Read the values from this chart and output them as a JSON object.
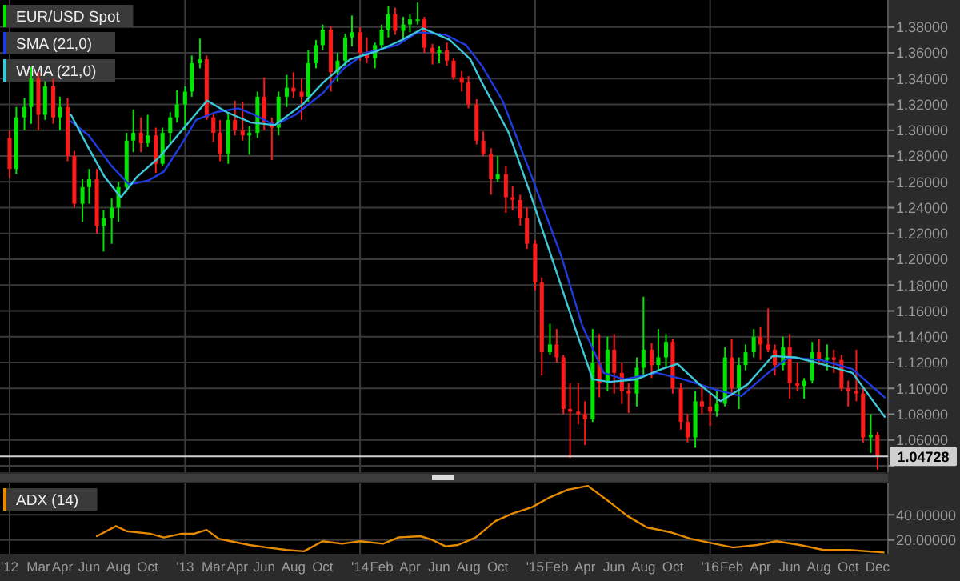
{
  "chart_data": [
    {
      "type": "candlestick",
      "xlim": [
        "2011-12-12",
        "2017-01-06"
      ],
      "ylim": [
        1.035,
        1.401
      ],
      "xticks": [
        {
          "value": "2012-01-01",
          "label": null
        },
        {
          "value": "2013-01-01",
          "label": null
        },
        {
          "value": "2014-01-01",
          "label": null
        },
        {
          "value": "2015-01-01",
          "label": null
        },
        {
          "value": "2016-01-01",
          "label": null
        }
      ],
      "yticks": [
        {
          "value": 1.04,
          "label": null
        },
        {
          "value": 1.06,
          "label": "1.06000"
        },
        {
          "value": 1.08,
          "label": "1.08000"
        },
        {
          "value": 1.1,
          "label": "1.10000"
        },
        {
          "value": 1.12,
          "label": "1.12000"
        },
        {
          "value": 1.14,
          "label": "1.14000"
        },
        {
          "value": 1.16,
          "label": "1.16000"
        },
        {
          "value": 1.18,
          "label": "1.18000"
        },
        {
          "value": 1.2,
          "label": "1.20000"
        },
        {
          "value": 1.22,
          "label": "1.22000"
        },
        {
          "value": 1.24,
          "label": "1.24000"
        },
        {
          "value": 1.26,
          "label": "1.26000"
        },
        {
          "value": 1.28,
          "label": "1.28000"
        },
        {
          "value": 1.3,
          "label": "1.30000"
        },
        {
          "value": 1.32,
          "label": "1.32000"
        },
        {
          "value": 1.34,
          "label": "1.34000"
        },
        {
          "value": 1.36,
          "label": "1.36000"
        },
        {
          "value": 1.38,
          "label": "1.38000"
        }
      ],
      "tick_labels": "y",
      "grid": true,
      "legend": "top left",
      "ref_lines": [
        {
          "axis": "y",
          "value": 1.04728,
          "label": "1.04728",
          "color": "#d0d0d0"
        }
      ],
      "series": [
        {
          "name": "EUR/USD Spot",
          "type": "candlestick",
          "color": "#00e600",
          "colors": [
            "#ff1a1a",
            "#00e600",
            "#00e600",
            "#00e600",
            "#ff1a1a",
            "#00e600",
            "#ff1a1a",
            "#00e600",
            "#ff1a1a",
            "#ff1a1a",
            "#00e600",
            "#00e600",
            "#ff1a1a",
            "#00e600",
            "#00e600",
            "#00e600",
            "#00e600",
            "#00e600",
            "#ff1a1a",
            "#00e600",
            "#ff1a1a",
            "#00e600",
            "#00e600",
            "#00e600",
            "#00e600",
            "#00e600",
            "#00e600",
            "#ff1a1a",
            "#ff1a1a",
            "#ff1a1a",
            "#00e600",
            "#ff1a1a",
            "#ff1a1a",
            "#00e600",
            "#00e600",
            "#ff1a1a",
            "#ff1a1a",
            "#00e600",
            "#00e600",
            "#ff1a1a",
            "#ff1a1a",
            "#00e600",
            "#00e600",
            "#00e600",
            "#ff1a1a",
            "#00e600",
            "#00e600",
            "#00e600",
            "#ff1a1a",
            "#ff1a1a",
            "#00e600",
            "#00e600",
            "#00e600",
            "#ff1a1a",
            "#00e600",
            "#00e600",
            "#00e600",
            "#ff1a1a",
            "#ff1a1a",
            "#00e600",
            "#ff1a1a",
            "#ff1a1a",
            "#ff1a1a",
            "#ff1a1a",
            "#ff1a1a",
            "#ff1a1a",
            "#ff1a1a",
            "#00e600",
            "#ff1a1a",
            "#ff1a1a",
            "#ff1a1a",
            "#ff1a1a",
            "#ff1a1a",
            "#ff1a1a",
            "#00e600",
            "#ff1a1a",
            "#ff1a1a",
            "#ff1a1a",
            "#ff1a1a",
            "#ff1a1a",
            "#00e600",
            "#ff1a1a",
            "#00e600",
            "#ff1a1a",
            "#ff1a1a",
            "#ff1a1a",
            "#00e600",
            "#00e600",
            "#ff1a1a",
            "#00e600",
            "#00e600",
            "#ff1a1a",
            "#ff1a1a",
            "#ff1a1a",
            "#00e600",
            "#ff1a1a",
            "#ff1a1a",
            "#00e600",
            "#00e600",
            "#ff1a1a",
            "#00e600",
            "#00e600",
            "#00e600",
            "#ff1a1a",
            "#ff1a1a",
            "#ff1a1a",
            "#00e600",
            "#ff1a1a",
            "#ff1a1a",
            "#00e600",
            "#00e600",
            "#ff1a1a",
            "#00e600",
            "#ff1a1a",
            "#ff1a1a",
            "#ff1a1a",
            "#ff1a1a",
            "#ff1a1a",
            "#00e600",
            "#ff1a1a"
          ],
          "x": [
            "2012-01-01",
            "2012-01-15",
            "2012-02-01",
            "2012-02-15",
            "2012-03-01",
            "2012-03-15",
            "2012-04-01",
            "2012-04-15",
            "2012-05-01",
            "2012-05-15",
            "2012-06-01",
            "2012-06-15",
            "2012-07-01",
            "2012-07-15",
            "2012-08-01",
            "2012-08-15",
            "2012-09-01",
            "2012-09-15",
            "2012-10-01",
            "2012-10-15",
            "2012-11-01",
            "2012-11-15",
            "2012-12-01",
            "2012-12-15",
            "2013-01-01",
            "2013-01-15",
            "2013-02-01",
            "2013-02-15",
            "2013-03-01",
            "2013-03-15",
            "2013-04-01",
            "2013-04-15",
            "2013-05-01",
            "2013-05-15",
            "2013-06-01",
            "2013-06-15",
            "2013-07-01",
            "2013-07-15",
            "2013-08-01",
            "2013-08-15",
            "2013-09-01",
            "2013-09-15",
            "2013-10-01",
            "2013-10-15",
            "2013-11-01",
            "2013-11-15",
            "2013-12-01",
            "2013-12-15",
            "2014-01-01",
            "2014-01-15",
            "2014-02-01",
            "2014-02-15",
            "2014-03-01",
            "2014-03-15",
            "2014-04-01",
            "2014-04-15",
            "2014-05-01",
            "2014-05-15",
            "2014-06-01",
            "2014-06-15",
            "2014-07-01",
            "2014-07-15",
            "2014-08-01",
            "2014-08-15",
            "2014-09-01",
            "2014-09-15",
            "2014-10-01",
            "2014-10-15",
            "2014-11-01",
            "2014-11-15",
            "2014-12-01",
            "2014-12-15",
            "2015-01-01",
            "2015-01-15",
            "2015-02-01",
            "2015-02-15",
            "2015-03-01",
            "2015-03-15",
            "2015-04-01",
            "2015-04-15",
            "2015-05-01",
            "2015-05-15",
            "2015-06-01",
            "2015-06-15",
            "2015-07-01",
            "2015-07-15",
            "2015-08-01",
            "2015-08-15",
            "2015-09-01",
            "2015-09-15",
            "2015-10-01",
            "2015-10-15",
            "2015-11-01",
            "2015-11-15",
            "2015-12-01",
            "2015-12-15",
            "2016-01-01",
            "2016-01-15",
            "2016-02-01",
            "2016-02-15",
            "2016-03-01",
            "2016-03-15",
            "2016-04-01",
            "2016-04-15",
            "2016-05-01",
            "2016-05-15",
            "2016-06-01",
            "2016-06-15",
            "2016-07-01",
            "2016-07-15",
            "2016-08-01",
            "2016-08-15",
            "2016-09-01",
            "2016-09-15",
            "2016-10-01",
            "2016-10-15",
            "2016-11-01",
            "2016-11-15",
            "2016-12-01",
            "2016-12-15"
          ],
          "ohlc": [
            [
              1.294,
              1.3,
              1.263,
              1.27
            ],
            [
              1.27,
              1.318,
              1.266,
              1.31
            ],
            [
              1.31,
              1.325,
              1.3,
              1.318
            ],
            [
              1.318,
              1.349,
              1.305,
              1.34
            ],
            [
              1.34,
              1.345,
              1.3,
              1.312
            ],
            [
              1.312,
              1.338,
              1.308,
              1.334
            ],
            [
              1.334,
              1.34,
              1.305,
              1.31
            ],
            [
              1.31,
              1.326,
              1.3,
              1.318
            ],
            [
              1.318,
              1.325,
              1.276,
              1.28
            ],
            [
              1.28,
              1.284,
              1.24,
              1.243
            ],
            [
              1.243,
              1.262,
              1.229,
              1.256
            ],
            [
              1.256,
              1.27,
              1.243,
              1.262
            ],
            [
              1.262,
              1.27,
              1.22,
              1.226
            ],
            [
              1.226,
              1.238,
              1.206,
              1.232
            ],
            [
              1.232,
              1.247,
              1.212,
              1.24
            ],
            [
              1.24,
              1.26,
              1.229,
              1.256
            ],
            [
              1.256,
              1.298,
              1.252,
              1.292
            ],
            [
              1.292,
              1.316,
              1.283,
              1.298
            ],
            [
              1.298,
              1.31,
              1.283,
              1.29
            ],
            [
              1.29,
              1.312,
              1.287,
              1.296
            ],
            [
              1.296,
              1.302,
              1.267,
              1.274
            ],
            [
              1.274,
              1.302,
              1.272,
              1.298
            ],
            [
              1.298,
              1.314,
              1.29,
              1.31
            ],
            [
              1.31,
              1.331,
              1.306,
              1.32
            ],
            [
              1.32,
              1.334,
              1.3,
              1.33
            ],
            [
              1.33,
              1.358,
              1.326,
              1.352
            ],
            [
              1.352,
              1.371,
              1.348,
              1.355
            ],
            [
              1.355,
              1.358,
              1.308,
              1.31
            ],
            [
              1.31,
              1.314,
              1.291,
              1.298
            ],
            [
              1.298,
              1.308,
              1.276,
              1.282
            ],
            [
              1.282,
              1.314,
              1.274,
              1.308
            ],
            [
              1.308,
              1.323,
              1.296,
              1.3
            ],
            [
              1.3,
              1.322,
              1.292,
              1.296
            ],
            [
              1.296,
              1.303,
              1.281,
              1.298
            ],
            [
              1.298,
              1.33,
              1.294,
              1.326
            ],
            [
              1.326,
              1.341,
              1.3,
              1.306
            ],
            [
              1.306,
              1.31,
              1.277,
              1.302
            ],
            [
              1.302,
              1.33,
              1.296,
              1.326
            ],
            [
              1.326,
              1.343,
              1.318,
              1.333
            ],
            [
              1.333,
              1.345,
              1.325,
              1.33
            ],
            [
              1.33,
              1.34,
              1.308,
              1.326
            ],
            [
              1.326,
              1.362,
              1.322,
              1.352
            ],
            [
              1.352,
              1.37,
              1.348,
              1.366
            ],
            [
              1.366,
              1.382,
              1.362,
              1.378
            ],
            [
              1.378,
              1.381,
              1.33,
              1.345
            ],
            [
              1.345,
              1.36,
              1.338,
              1.354
            ],
            [
              1.354,
              1.375,
              1.35,
              1.372
            ],
            [
              1.372,
              1.389,
              1.365,
              1.376
            ],
            [
              1.376,
              1.38,
              1.354,
              1.36
            ],
            [
              1.36,
              1.372,
              1.352,
              1.356
            ],
            [
              1.356,
              1.368,
              1.348,
              1.366
            ],
            [
              1.366,
              1.382,
              1.362,
              1.378
            ],
            [
              1.378,
              1.396,
              1.372,
              1.39
            ],
            [
              1.39,
              1.395,
              1.374,
              1.377
            ],
            [
              1.377,
              1.388,
              1.37,
              1.382
            ],
            [
              1.382,
              1.39,
              1.376,
              1.386
            ],
            [
              1.386,
              1.399,
              1.382,
              1.386
            ],
            [
              1.386,
              1.388,
              1.36,
              1.364
            ],
            [
              1.364,
              1.367,
              1.351,
              1.36
            ],
            [
              1.36,
              1.365,
              1.352,
              1.362
            ],
            [
              1.362,
              1.368,
              1.35,
              1.354
            ],
            [
              1.354,
              1.356,
              1.339,
              1.341
            ],
            [
              1.341,
              1.346,
              1.33,
              1.337
            ],
            [
              1.337,
              1.342,
              1.317,
              1.32
            ],
            [
              1.32,
              1.324,
              1.289,
              1.292
            ],
            [
              1.292,
              1.299,
              1.28,
              1.282
            ],
            [
              1.282,
              1.286,
              1.25,
              1.262
            ],
            [
              1.262,
              1.28,
              1.26,
              1.266
            ],
            [
              1.266,
              1.272,
              1.236,
              1.248
            ],
            [
              1.248,
              1.257,
              1.238,
              1.246
            ],
            [
              1.246,
              1.25,
              1.226,
              1.232
            ],
            [
              1.232,
              1.24,
              1.208,
              1.212
            ],
            [
              1.212,
              1.215,
              1.176,
              1.182
            ],
            [
              1.182,
              1.186,
              1.11,
              1.128
            ],
            [
              1.128,
              1.15,
              1.126,
              1.134
            ],
            [
              1.134,
              1.146,
              1.12,
              1.124
            ],
            [
              1.124,
              1.126,
              1.08,
              1.084
            ],
            [
              1.084,
              1.104,
              1.046,
              1.082
            ],
            [
              1.082,
              1.104,
              1.072,
              1.08
            ],
            [
              1.08,
              1.09,
              1.056,
              1.076
            ],
            [
              1.076,
              1.146,
              1.074,
              1.12
            ],
            [
              1.12,
              1.142,
              1.093,
              1.104
            ],
            [
              1.104,
              1.14,
              1.098,
              1.13
            ],
            [
              1.13,
              1.142,
              1.096,
              1.112
            ],
            [
              1.112,
              1.12,
              1.088,
              1.098
            ],
            [
              1.098,
              1.104,
              1.081,
              1.096
            ],
            [
              1.096,
              1.124,
              1.086,
              1.116
            ],
            [
              1.116,
              1.171,
              1.11,
              1.13
            ],
            [
              1.13,
              1.135,
              1.108,
              1.118
            ],
            [
              1.118,
              1.146,
              1.114,
              1.124
            ],
            [
              1.124,
              1.142,
              1.116,
              1.136
            ],
            [
              1.136,
              1.138,
              1.096,
              1.1
            ],
            [
              1.1,
              1.104,
              1.068,
              1.074
            ],
            [
              1.074,
              1.08,
              1.058,
              1.062
            ],
            [
              1.062,
              1.098,
              1.054,
              1.09
            ],
            [
              1.09,
              1.102,
              1.08,
              1.086
            ],
            [
              1.086,
              1.096,
              1.071,
              1.082
            ],
            [
              1.082,
              1.098,
              1.078,
              1.088
            ],
            [
              1.088,
              1.132,
              1.086,
              1.124
            ],
            [
              1.124,
              1.138,
              1.094,
              1.1
            ],
            [
              1.1,
              1.124,
              1.084,
              1.118
            ],
            [
              1.118,
              1.134,
              1.114,
              1.128
            ],
            [
              1.128,
              1.146,
              1.124,
              1.14
            ],
            [
              1.14,
              1.148,
              1.122,
              1.134
            ],
            [
              1.134,
              1.162,
              1.128,
              1.13
            ],
            [
              1.13,
              1.134,
              1.11,
              1.118
            ],
            [
              1.118,
              1.14,
              1.114,
              1.132
            ],
            [
              1.132,
              1.142,
              1.092,
              1.104
            ],
            [
              1.104,
              1.12,
              1.098,
              1.102
            ],
            [
              1.102,
              1.108,
              1.092,
              1.106
            ],
            [
              1.106,
              1.136,
              1.104,
              1.128
            ],
            [
              1.128,
              1.138,
              1.118,
              1.122
            ],
            [
              1.122,
              1.134,
              1.114,
              1.124
            ],
            [
              1.124,
              1.13,
              1.112,
              1.122
            ],
            [
              1.122,
              1.126,
              1.098,
              1.1
            ],
            [
              1.1,
              1.106,
              1.086,
              1.098
            ],
            [
              1.098,
              1.13,
              1.09,
              1.096
            ],
            [
              1.096,
              1.1,
              1.058,
              1.062
            ],
            [
              1.062,
              1.08,
              1.05,
              1.064
            ],
            [
              1.064,
              1.066,
              1.037,
              1.047
            ]
          ]
        },
        {
          "name": "SMA (21,0)",
          "type": "line",
          "color": "#1f3be0",
          "x": [
            "2012-05-08",
            "2012-06-14",
            "2012-07-30",
            "2012-09-06",
            "2012-10-16",
            "2012-11-18",
            "2012-12-21",
            "2013-01-24",
            "2013-03-06",
            "2013-04-22",
            "2013-05-25",
            "2013-07-07",
            "2013-08-19",
            "2013-10-16",
            "2013-11-28",
            "2014-01-13",
            "2014-03-19",
            "2014-05-01",
            "2014-06-28",
            "2014-08-10",
            "2014-09-12",
            "2014-10-25",
            "2014-12-21",
            "2015-02-25",
            "2015-04-09",
            "2015-05-24",
            "2015-07-06",
            "2015-09-12",
            "2015-11-06",
            "2016-01-13",
            "2016-03-06",
            "2016-05-01",
            "2016-06-13",
            "2016-08-19",
            "2016-10-24",
            "2016-12-30"
          ],
          "values": [
            1.307,
            1.296,
            1.273,
            1.258,
            1.261,
            1.268,
            1.287,
            1.308,
            1.314,
            1.317,
            1.312,
            1.304,
            1.312,
            1.329,
            1.348,
            1.36,
            1.366,
            1.376,
            1.374,
            1.366,
            1.35,
            1.323,
            1.268,
            1.202,
            1.149,
            1.112,
            1.107,
            1.112,
            1.107,
            1.099,
            1.094,
            1.112,
            1.124,
            1.122,
            1.115,
            1.093
          ]
        },
        {
          "name": "WMA (21,0)",
          "type": "line",
          "color": "#3cc8d8",
          "x": [
            "2012-05-08",
            "2012-06-14",
            "2012-07-17",
            "2012-08-20",
            "2012-09-23",
            "2012-11-08",
            "2012-12-21",
            "2013-02-16",
            "2013-03-29",
            "2013-05-18",
            "2013-07-07",
            "2013-09-03",
            "2013-10-16",
            "2013-12-11",
            "2014-02-03",
            "2014-03-29",
            "2014-05-12",
            "2014-07-07",
            "2014-08-19",
            "2014-09-12",
            "2014-11-07",
            "2014-12-21",
            "2015-02-04",
            "2015-03-28",
            "2015-05-01",
            "2015-06-04",
            "2015-08-01",
            "2015-09-22",
            "2015-10-25",
            "2015-12-10",
            "2016-01-23",
            "2016-03-19",
            "2016-05-10",
            "2016-06-27",
            "2016-08-19",
            "2016-10-24",
            "2016-12-30"
          ],
          "values": [
            1.312,
            1.286,
            1.264,
            1.248,
            1.264,
            1.279,
            1.298,
            1.323,
            1.314,
            1.306,
            1.304,
            1.32,
            1.337,
            1.355,
            1.361,
            1.37,
            1.379,
            1.37,
            1.355,
            1.337,
            1.298,
            1.252,
            1.202,
            1.144,
            1.107,
            1.105,
            1.107,
            1.115,
            1.119,
            1.103,
            1.09,
            1.103,
            1.125,
            1.124,
            1.119,
            1.112,
            1.078
          ]
        }
      ]
    },
    {
      "type": "line",
      "xlim": [
        "2011-12-12",
        "2017-01-06"
      ],
      "ylim": [
        9,
        65
      ],
      "xticks": [
        {
          "value": "2012-01-01",
          "label": "'12"
        },
        {
          "value": "2012-03-01",
          "label": "Mar"
        },
        {
          "value": "2012-04-20",
          "label": "Apr"
        },
        {
          "value": "2012-06-15",
          "label": "Jun"
        },
        {
          "value": "2012-08-15",
          "label": "Aug"
        },
        {
          "value": "2012-10-15",
          "label": "Oct"
        },
        {
          "value": "2013-01-01",
          "label": "'13"
        },
        {
          "value": "2013-03-01",
          "label": "Mar"
        },
        {
          "value": "2013-04-20",
          "label": "Apr"
        },
        {
          "value": "2013-06-15",
          "label": "Jun"
        },
        {
          "value": "2013-08-15",
          "label": "Aug"
        },
        {
          "value": "2013-10-15",
          "label": "Oct"
        },
        {
          "value": "2014-01-01",
          "label": "'14"
        },
        {
          "value": "2014-02-15",
          "label": "Feb"
        },
        {
          "value": "2014-04-15",
          "label": "Apr"
        },
        {
          "value": "2014-06-15",
          "label": "Jun"
        },
        {
          "value": "2014-08-15",
          "label": "Aug"
        },
        {
          "value": "2014-10-15",
          "label": "Oct"
        },
        {
          "value": "2015-01-01",
          "label": "'15"
        },
        {
          "value": "2015-02-15",
          "label": "Feb"
        },
        {
          "value": "2015-04-15",
          "label": "Apr"
        },
        {
          "value": "2015-06-15",
          "label": "Jun"
        },
        {
          "value": "2015-08-15",
          "label": "Aug"
        },
        {
          "value": "2015-10-15",
          "label": "Oct"
        },
        {
          "value": "2016-01-01",
          "label": "'16"
        },
        {
          "value": "2016-02-15",
          "label": "Feb"
        },
        {
          "value": "2016-04-15",
          "label": "Apr"
        },
        {
          "value": "2016-06-15",
          "label": "Jun"
        },
        {
          "value": "2016-08-15",
          "label": "Aug"
        },
        {
          "value": "2016-10-15",
          "label": "Oct"
        },
        {
          "value": "2016-12-15",
          "label": "Dec"
        }
      ],
      "yticks": [
        {
          "value": 20,
          "label": "20.00000"
        },
        {
          "value": 40,
          "label": "40.00000"
        }
      ],
      "grid": true,
      "legend": "top left",
      "series": [
        {
          "name": "ADX (14)",
          "color": "#e68a00",
          "x": [
            "2012-07-01",
            "2012-08-10",
            "2012-09-01",
            "2012-10-20",
            "2012-11-18",
            "2012-12-25",
            "2013-01-20",
            "2013-02-15",
            "2013-03-12",
            "2013-04-06",
            "2013-05-15",
            "2013-06-21",
            "2013-08-01",
            "2013-09-06",
            "2013-10-15",
            "2013-11-24",
            "2014-01-01",
            "2014-02-18",
            "2014-03-22",
            "2014-05-07",
            "2014-06-01",
            "2014-06-28",
            "2014-07-24",
            "2014-08-30",
            "2014-10-10",
            "2014-11-15",
            "2014-12-25",
            "2015-02-01",
            "2015-03-10",
            "2015-04-21",
            "2015-06-06",
            "2015-07-13",
            "2015-08-22",
            "2015-10-12",
            "2015-11-21",
            "2016-01-10",
            "2016-02-18",
            "2016-04-08",
            "2016-05-18",
            "2016-07-06",
            "2016-08-25",
            "2016-10-18",
            "2016-12-28"
          ],
          "values": [
            23,
            31,
            27,
            25,
            22,
            25,
            25,
            28,
            21,
            19,
            16,
            14,
            12,
            11,
            19,
            17,
            19,
            17,
            22,
            23,
            20,
            15,
            16,
            22,
            35,
            41,
            46,
            54,
            60,
            63,
            50,
            39,
            30,
            26,
            21,
            17,
            14,
            16,
            19,
            16,
            12,
            12,
            10
          ]
        }
      ]
    }
  ]
}
